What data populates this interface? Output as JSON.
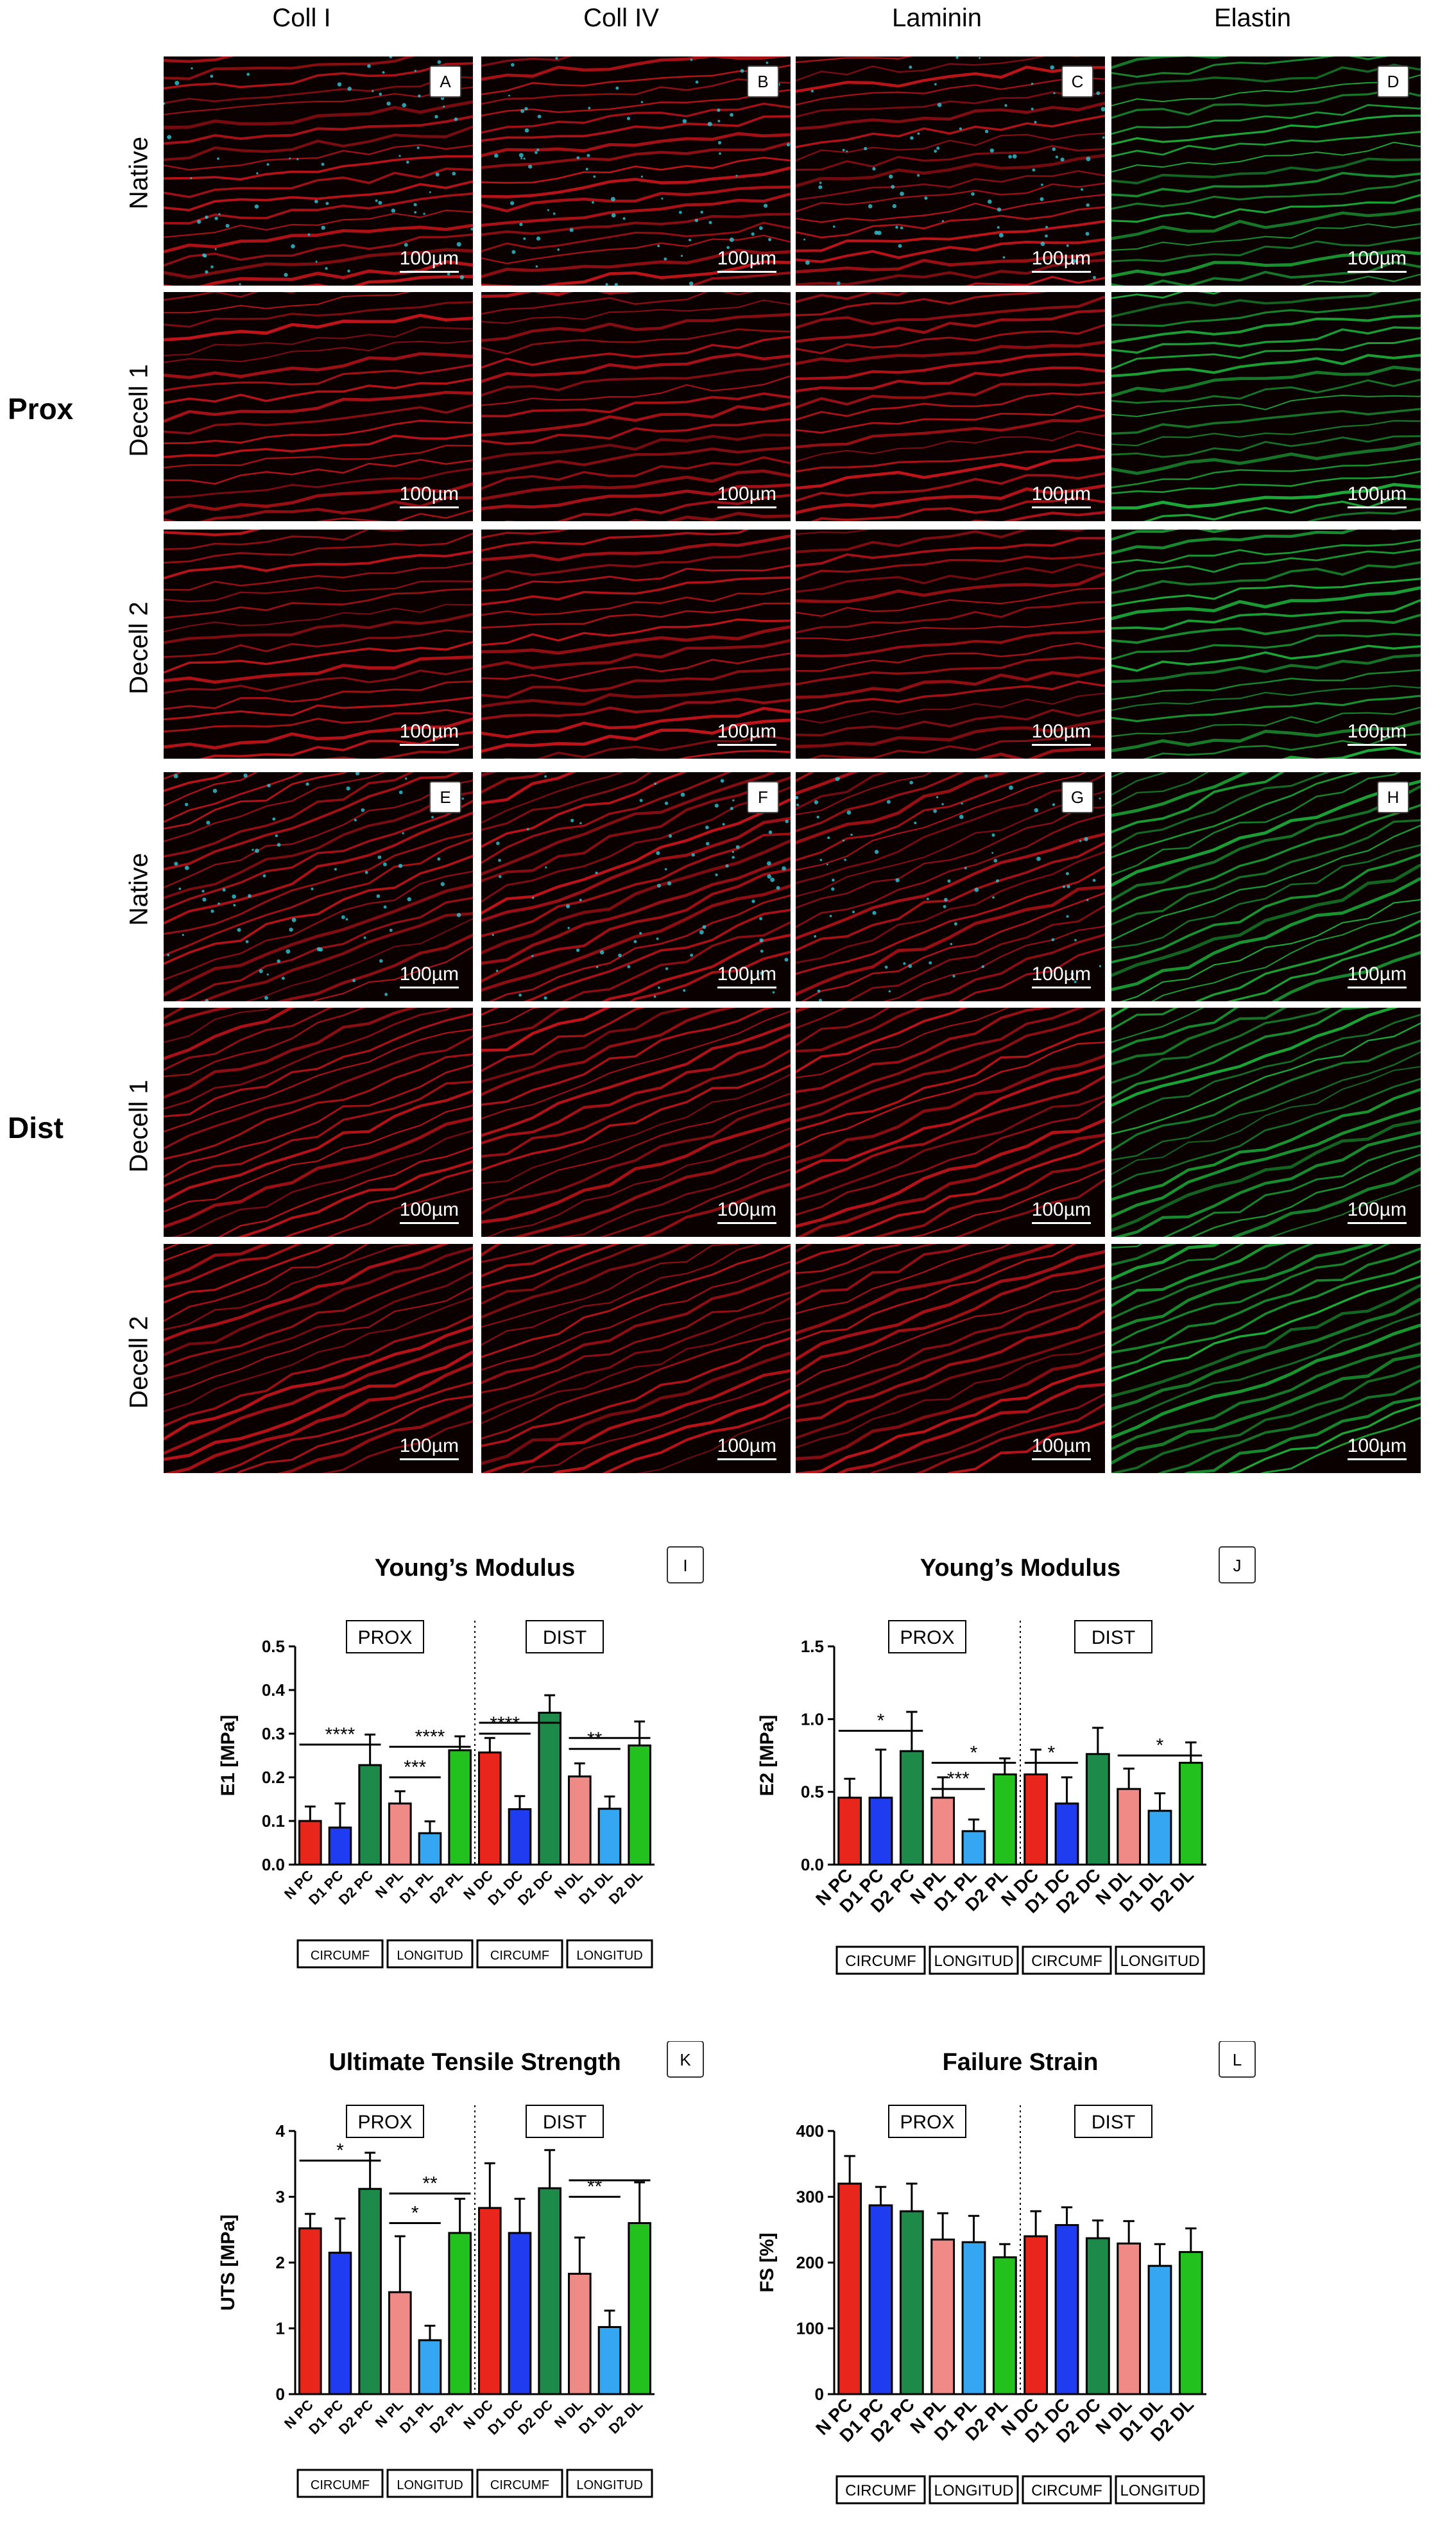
{
  "headers": [
    "Coll I",
    "Coll IV",
    "Laminin",
    "Elastin"
  ],
  "row_labels": [
    "Native",
    "Decell 1",
    "Decell 2"
  ],
  "groups": [
    "Prox",
    "Dist"
  ],
  "letters_top": [
    "A",
    "B",
    "C",
    "D"
  ],
  "letters_bottom": [
    "E",
    "F",
    "G",
    "H"
  ],
  "scale": "100µm",
  "colors": {
    "red": "#e8261c",
    "blue": "#1f3cf0",
    "green": "#1d8a4a",
    "pink": "#f08a86",
    "lightblue": "#34a6f2",
    "lightgreen": "#22c11e",
    "tissue_red": "#c8141a",
    "tissue_green": "#1db33a",
    "nuclei": "#33c6d6"
  },
  "chart_data": [
    {
      "type": "bar",
      "letter": "I",
      "title": "Young’s Modulus",
      "ylabel": "E1 [MPa]",
      "ylim": [
        0,
        0.5
      ],
      "yticks": [
        "0.0",
        "0.1",
        "0.2",
        "0.3",
        "0.4",
        "0.5"
      ],
      "categories": [
        "N PC",
        "D1 PC",
        "D2 PC",
        "N PL",
        "D1 PL",
        "D2 PL",
        "N DC",
        "D1 DC",
        "D2 DC",
        "N DL",
        "D1 DL",
        "D2 DL"
      ],
      "values": [
        0.1,
        0.085,
        0.228,
        0.14,
        0.072,
        0.262,
        0.257,
        0.127,
        0.348,
        0.202,
        0.128,
        0.273
      ],
      "errors": [
        0.033,
        0.055,
        0.07,
        0.028,
        0.027,
        0.032,
        0.033,
        0.03,
        0.04,
        0.03,
        0.028,
        0.055
      ],
      "sections": [
        "PROX",
        "DIST"
      ],
      "groups": [
        "CIRCUMF",
        "LONGITUD",
        "CIRCUMF",
        "LONGITUD"
      ],
      "sig": [
        {
          "from": 0,
          "to": 2,
          "y": 0.275,
          "label": "****"
        },
        {
          "from": 3,
          "to": 4,
          "y": 0.2,
          "label": "***"
        },
        {
          "from": 3,
          "to": 5,
          "y": 0.27,
          "label": "****"
        },
        {
          "from": 6,
          "to": 7,
          "y": 0.3,
          "label": "****"
        },
        {
          "from": 6,
          "to": 8,
          "y": 0.325,
          "label": ""
        },
        {
          "from": 9,
          "to": 10,
          "y": 0.265,
          "label": "**"
        },
        {
          "from": 9,
          "to": 11,
          "y": 0.29,
          "label": ""
        }
      ]
    },
    {
      "type": "bar",
      "letter": "J",
      "title": "Young’s Modulus",
      "ylabel": "E2 [MPa]",
      "ylim": [
        0,
        1.5
      ],
      "yticks": [
        "0.0",
        "0.5",
        "1.0",
        "1.5"
      ],
      "categories": [
        "N PC",
        "D1 PC",
        "D2 PC",
        "N PL",
        "D1 PL",
        "D2 PL",
        "N DC",
        "D1 DC",
        "D2 DC",
        "N DL",
        "D1 DL",
        "D2 DL"
      ],
      "values": [
        0.46,
        0.46,
        0.78,
        0.46,
        0.23,
        0.62,
        0.62,
        0.42,
        0.76,
        0.52,
        0.37,
        0.7
      ],
      "errors": [
        0.13,
        0.33,
        0.27,
        0.14,
        0.08,
        0.11,
        0.17,
        0.18,
        0.18,
        0.14,
        0.12,
        0.14
      ],
      "sections": [
        "PROX",
        "DIST"
      ],
      "groups": [
        "CIRCUMF",
        "LONGITUD",
        "CIRCUMF",
        "LONGITUD"
      ],
      "sig": [
        {
          "from": 0,
          "to": 2,
          "y": 0.92,
          "label": "*"
        },
        {
          "from": 3,
          "to": 4,
          "y": 0.52,
          "label": "***"
        },
        {
          "from": 3,
          "to": 5,
          "y": 0.7,
          "label": "*"
        },
        {
          "from": 6,
          "to": 7,
          "y": 0.7,
          "label": "*"
        },
        {
          "from": 9,
          "to": 11,
          "y": 0.75,
          "label": "*"
        }
      ]
    },
    {
      "type": "bar",
      "letter": "K",
      "title": "Ultimate Tensile Strength",
      "ylabel": "UTS [MPa]",
      "ylim": [
        0,
        4
      ],
      "yticks": [
        "0",
        "1",
        "2",
        "3",
        "4"
      ],
      "categories": [
        "N PC",
        "D1 PC",
        "D2 PC",
        "N PL",
        "D1 PL",
        "D2 PL",
        "N DC",
        "D1 DC",
        "D2 DC",
        "N DL",
        "D1 DL",
        "D2 DL"
      ],
      "values": [
        2.52,
        2.15,
        3.12,
        1.55,
        0.82,
        2.45,
        2.83,
        2.45,
        3.13,
        1.83,
        1.02,
        2.6
      ],
      "errors": [
        0.22,
        0.52,
        0.55,
        0.85,
        0.22,
        0.52,
        0.68,
        0.52,
        0.58,
        0.55,
        0.25,
        0.62
      ],
      "sections": [
        "PROX",
        "DIST"
      ],
      "groups": [
        "CIRCUMF",
        "LONGITUD",
        "CIRCUMF",
        "LONGITUD"
      ],
      "sig": [
        {
          "from": 0,
          "to": 2,
          "y": 3.55,
          "label": "*"
        },
        {
          "from": 3,
          "to": 4,
          "y": 2.6,
          "label": "*"
        },
        {
          "from": 3,
          "to": 5,
          "y": 3.05,
          "label": "**"
        },
        {
          "from": 9,
          "to": 10,
          "y": 3.0,
          "label": "**"
        },
        {
          "from": 9,
          "to": 11,
          "y": 3.25,
          "label": ""
        }
      ]
    },
    {
      "type": "bar",
      "letter": "L",
      "title": "Failure Strain",
      "ylabel": "FS [%]",
      "ylim": [
        0,
        400
      ],
      "yticks": [
        "0",
        "100",
        "200",
        "300",
        "400"
      ],
      "categories": [
        "N PC",
        "D1 PC",
        "D2 PC",
        "N PL",
        "D1 PL",
        "D2 PL",
        "N DC",
        "D1 DC",
        "D2 DC",
        "N DL",
        "D1 DL",
        "D2 DL"
      ],
      "values": [
        320,
        287,
        278,
        235,
        231,
        208,
        240,
        257,
        237,
        229,
        195,
        216
      ],
      "errors": [
        42,
        28,
        42,
        40,
        40,
        20,
        38,
        27,
        27,
        34,
        33,
        36
      ],
      "sections": [
        "PROX",
        "DIST"
      ],
      "groups": [
        "CIRCUMF",
        "LONGITUD",
        "CIRCUMF",
        "LONGITUD"
      ],
      "sig": []
    }
  ]
}
